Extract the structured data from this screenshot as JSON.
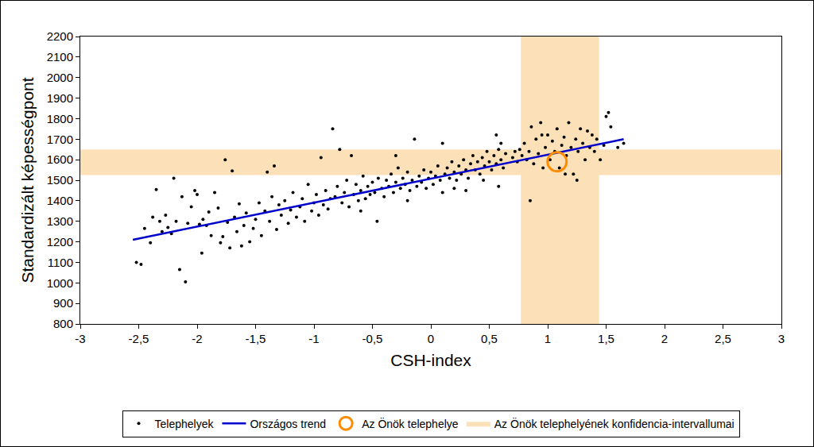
{
  "chart_data": {
    "type": "scatter",
    "x_title": "CSH-index",
    "y_title": "Standardizált képességpont",
    "xlim": [
      -3,
      3
    ],
    "xticks": [
      -3,
      {
        "value": -2.5,
        "label": "-2,5"
      },
      -2,
      {
        "value": -1.5,
        "label": "-1,5"
      },
      -1,
      {
        "value": -0.5,
        "label": "-0,5"
      },
      0,
      {
        "value": 0.5,
        "label": "0,5"
      },
      1,
      {
        "value": 1.5,
        "label": "1,5"
      },
      2,
      {
        "value": 2.5,
        "label": "2,5"
      },
      3
    ],
    "ylim": [
      800,
      2200
    ],
    "yticks": [
      800,
      900,
      1000,
      1100,
      1200,
      1300,
      1400,
      1500,
      1600,
      1700,
      1800,
      1900,
      2000,
      2100,
      2200
    ],
    "grid": false,
    "legend": "bottom",
    "confidence_intervals": {
      "name": "Az Önök telephelyének konfidencia-intervallumai",
      "color": "#fbe0b8",
      "x_range": [
        0.77,
        1.44
      ],
      "y_range": [
        1525,
        1650
      ]
    },
    "series": [
      {
        "name": "Telephelyek",
        "type": "scatter",
        "marker": "dot",
        "color": "#000000",
        "x": [
          -2.52,
          -2.48,
          -2.45,
          -2.4,
          -2.38,
          -2.35,
          -2.32,
          -2.3,
          -2.27,
          -2.25,
          -2.22,
          -2.2,
          -2.18,
          -2.15,
          -2.13,
          -2.1,
          -2.08,
          -2.05,
          -2.02,
          -2.0,
          -1.98,
          -1.96,
          -1.95,
          -1.92,
          -1.9,
          -1.88,
          -1.85,
          -1.82,
          -1.8,
          -1.78,
          -1.76,
          -1.74,
          -1.72,
          -1.7,
          -1.68,
          -1.66,
          -1.64,
          -1.62,
          -1.6,
          -1.58,
          -1.55,
          -1.52,
          -1.5,
          -1.47,
          -1.45,
          -1.42,
          -1.4,
          -1.38,
          -1.36,
          -1.34,
          -1.32,
          -1.3,
          -1.28,
          -1.25,
          -1.22,
          -1.2,
          -1.18,
          -1.15,
          -1.12,
          -1.1,
          -1.08,
          -1.05,
          -1.02,
          -1.0,
          -0.98,
          -0.96,
          -0.94,
          -0.92,
          -0.9,
          -0.88,
          -0.86,
          -0.84,
          -0.82,
          -0.8,
          -0.78,
          -0.76,
          -0.74,
          -0.72,
          -0.7,
          -0.68,
          -0.66,
          -0.64,
          -0.62,
          -0.6,
          -0.58,
          -0.56,
          -0.54,
          -0.52,
          -0.5,
          -0.48,
          -0.46,
          -0.45,
          -0.42,
          -0.4,
          -0.38,
          -0.36,
          -0.34,
          -0.32,
          -0.3,
          -0.28,
          -0.26,
          -0.24,
          -0.22,
          -0.2,
          -0.18,
          -0.16,
          -0.14,
          -0.12,
          -0.1,
          -0.08,
          -0.06,
          -0.04,
          -0.02,
          0.0,
          0.02,
          0.04,
          0.06,
          0.08,
          0.1,
          0.12,
          0.14,
          0.16,
          0.18,
          0.2,
          0.22,
          0.24,
          0.26,
          0.28,
          0.3,
          0.32,
          0.34,
          0.36,
          0.38,
          0.4,
          0.42,
          0.44,
          0.46,
          0.48,
          0.5,
          0.52,
          0.54,
          0.56,
          0.58,
          0.6,
          0.62,
          0.64,
          0.56,
          0.6,
          0.7,
          0.72,
          0.74,
          0.58,
          0.3,
          -0.2,
          -0.6,
          0.1,
          -0.3,
          0.45,
          0.2,
          0.76,
          0.78,
          0.8,
          0.82,
          0.84,
          0.86,
          0.88,
          0.9,
          0.92,
          0.94,
          0.96,
          0.98,
          1.0,
          1.02,
          1.04,
          1.06,
          1.08,
          1.1,
          1.12,
          1.14,
          1.16,
          1.18,
          1.2,
          1.22,
          1.24,
          1.26,
          1.28,
          1.3,
          1.32,
          1.34,
          1.36,
          1.38,
          1.4,
          1.42,
          1.45,
          1.48,
          1.5,
          1.52,
          1.54,
          1.6,
          1.65,
          0.85,
          1.25,
          0.95,
          1.15
        ],
        "values": [
          1100,
          1090,
          1265,
          1195,
          1320,
          1455,
          1300,
          1250,
          1330,
          1270,
          1240,
          1510,
          1300,
          1065,
          1420,
          1005,
          1290,
          1370,
          1450,
          1430,
          1285,
          1145,
          1310,
          1280,
          1345,
          1230,
          1440,
          1365,
          1195,
          1225,
          1600,
          1295,
          1170,
          1545,
          1320,
          1250,
          1385,
          1180,
          1280,
          1340,
          1200,
          1265,
          1310,
          1390,
          1230,
          1350,
          1540,
          1300,
          1420,
          1570,
          1260,
          1380,
          1330,
          1400,
          1290,
          1355,
          1440,
          1320,
          1370,
          1410,
          1300,
          1480,
          1350,
          1390,
          1430,
          1330,
          1610,
          1380,
          1450,
          1360,
          1410,
          1750,
          1420,
          1470,
          1650,
          1390,
          1440,
          1500,
          1370,
          1620,
          1430,
          1480,
          1400,
          1450,
          1520,
          1410,
          1470,
          1430,
          1490,
          1440,
          1300,
          1510,
          1460,
          1420,
          1500,
          1470,
          1530,
          1440,
          1490,
          1560,
          1460,
          1510,
          1480,
          1540,
          1450,
          1500,
          1700,
          1470,
          1520,
          1490,
          1550,
          1460,
          1510,
          1540,
          1480,
          1520,
          1570,
          1500,
          1440,
          1530,
          1560,
          1510,
          1590,
          1540,
          1500,
          1570,
          1530,
          1600,
          1550,
          1510,
          1580,
          1620,
          1550,
          1590,
          1530,
          1610,
          1570,
          1640,
          1590,
          1550,
          1620,
          1580,
          1650,
          1600,
          1560,
          1630,
          1720,
          1680,
          1610,
          1640,
          1590,
          1470,
          1450,
          1400,
          1350,
          1680,
          1620,
          1500,
          1460,
          1650,
          1620,
          1680,
          1600,
          1640,
          1760,
          1580,
          1700,
          1630,
          1780,
          1560,
          1660,
          1720,
          1600,
          1690,
          1640,
          1750,
          1560,
          1670,
          1710,
          1620,
          1780,
          1660,
          1530,
          1700,
          1640,
          1750,
          1680,
          1600,
          1740,
          1660,
          1720,
          1640,
          1700,
          1600,
          1670,
          1810,
          1830,
          1760,
          1660,
          1680,
          1400,
          1500,
          1720,
          1530
        ]
      },
      {
        "name": "Országos trend",
        "type": "line",
        "line_style": "solid",
        "color": "#0000cc",
        "x": [
          -2.55,
          1.65
        ],
        "values": [
          1210,
          1700
        ]
      },
      {
        "name": "Az Önök telephelye",
        "type": "scatter",
        "marker": "circle-open",
        "color": "#ff8c00",
        "x": [
          1.08
        ],
        "values": [
          1590
        ]
      }
    ]
  }
}
